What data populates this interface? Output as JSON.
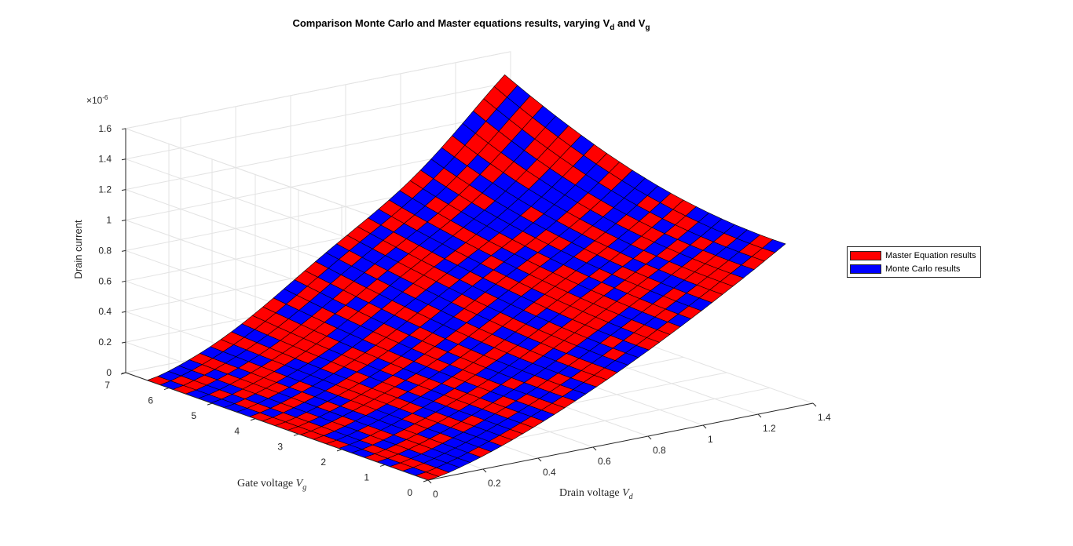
{
  "chart_data": {
    "type": "surface3d",
    "title_prefix": "Comparison Monte Carlo and Master equations results, varying V",
    "title_sub1": "d",
    "title_mid": " and V",
    "title_sub2": "g",
    "xlabel_prefix": "Drain voltage ",
    "xlabel_var": "V",
    "xlabel_sub": "d",
    "ylabel_prefix": "Gate voltage ",
    "ylabel_var": "V",
    "ylabel_sub": "g",
    "zlabel": "Drain current",
    "z_exponent_label": "×10",
    "z_exponent_power": "-6",
    "xlim": [
      0,
      1.4
    ],
    "ylim": [
      0,
      7
    ],
    "zlim": [
      0,
      1.6
    ],
    "x_ticks": [
      "0",
      "0.2",
      "0.4",
      "0.6",
      "0.8",
      "1",
      "1.2",
      "1.4"
    ],
    "y_ticks": [
      "0",
      "1",
      "2",
      "3",
      "4",
      "5",
      "6",
      "7"
    ],
    "z_ticks": [
      "0",
      "0.2",
      "0.4",
      "0.6",
      "0.8",
      "1",
      "1.2",
      "1.4",
      "1.6"
    ],
    "x_range": [
      0,
      1.3
    ],
    "y_range": [
      0,
      6.5
    ],
    "z_scale_note": "values in units of 1e-6",
    "surface_peak": 1.5,
    "legend_position": "right",
    "grid": true,
    "series": [
      {
        "name": "Master Equation results",
        "color": "#ff0000"
      },
      {
        "name": "Monte Carlo results",
        "color": "#0000ff"
      }
    ]
  }
}
